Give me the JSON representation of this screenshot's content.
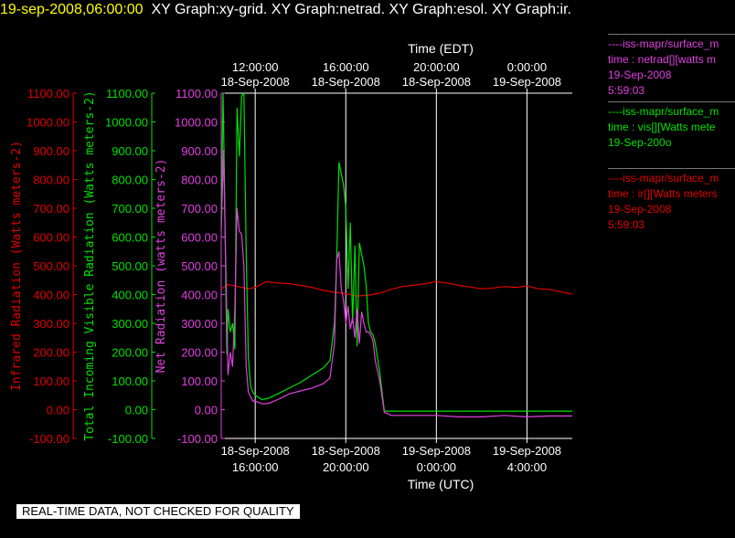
{
  "header": {
    "date": "19-sep-2008,06:00:00",
    "graphs": "XY Graph:xy-grid.  XY Graph:netrad.  XY Graph:esol.  XY Graph:ir."
  },
  "footer_note": "REAL-TIME DATA, NOT CHECKED FOR QUALITY",
  "legend": [
    {
      "color": "#e040e0",
      "lines": [
        "----iss-mapr/surface_m",
        "time : netrad[][watts m",
        "19-Sep-2008",
        "5:59:03"
      ]
    },
    {
      "color": "#00e000",
      "lines": [
        "----iss-mapr/surface_m",
        "time : vis[][Watts mete",
        "19-Sep-200o"
      ]
    },
    {
      "color": "#e00000",
      "lines": [
        "----iss-mapr/surface_m",
        "time : ir[][Watts meters",
        "19-Sep-2008",
        "5:59:03"
      ]
    }
  ],
  "chart_data": {
    "type": "line",
    "top_axis": {
      "title": "Time (EDT)",
      "ticks": [
        {
          "t": 0,
          "line1": "12:00:00",
          "line2": "18-Sep-2008"
        },
        {
          "t": 4,
          "line1": "16:00:00",
          "line2": "18-Sep-2008"
        },
        {
          "t": 8,
          "line1": "20:00:00",
          "line2": "18-Sep-2008"
        },
        {
          "t": 12,
          "line1": "0:00:00",
          "line2": "19-Sep-2008"
        }
      ]
    },
    "bottom_axis": {
      "title": "Time (UTC)",
      "ticks": [
        {
          "t": 0,
          "line1": "18-Sep-2008",
          "line2": "16:00:00"
        },
        {
          "t": 4,
          "line1": "18-Sep-2008",
          "line2": "20:00:00"
        },
        {
          "t": 8,
          "line1": "19-Sep-2008",
          "line2": "0:00:00"
        },
        {
          "t": 12,
          "line1": "19-Sep-2008",
          "line2": "4:00:00"
        }
      ]
    },
    "xlim": [
      -1.5,
      14.0
    ],
    "y_axes": [
      {
        "name": "ir",
        "label": "Infrared Radiation (Watts meters-2)",
        "color": "#e00000",
        "ylim": [
          -100,
          1100
        ],
        "ticks": [
          "1100.00",
          "1000.00",
          "900.00",
          "800.00",
          "700.00",
          "600.00",
          "500.00",
          "400.00",
          "300.00",
          "200.00",
          "100.00",
          "0.00",
          "-100.00"
        ]
      },
      {
        "name": "vis",
        "label": "Total Incoming Visible Radiation (Watts meters-2)",
        "color": "#00e000",
        "ylim": [
          -100,
          1100
        ],
        "ticks": [
          "1100.00",
          "1000.00",
          "900.00",
          "800.00",
          "700.00",
          "600.00",
          "500.00",
          "400.00",
          "300.00",
          "200.00",
          "100.00",
          "0.00",
          "-100.00"
        ]
      },
      {
        "name": "netrad",
        "label": "Net Radiation (watts meters-2)",
        "color": "#e040e0",
        "ylim": [
          -100,
          1100
        ],
        "ticks": [
          "1100.00",
          "1000.00",
          "900.00",
          "800.00",
          "700.00",
          "600.00",
          "500.00",
          "400.00",
          "300.00",
          "200.00",
          "100.00",
          "0.00",
          "-100.00"
        ]
      }
    ],
    "series": [
      {
        "color": "#e00000",
        "x": [
          -1.5,
          -1.2,
          -0.9,
          -0.6,
          -0.3,
          0,
          0.5,
          1,
          1.5,
          2,
          2.5,
          3,
          3.5,
          4,
          4.5,
          5,
          5.5,
          6,
          6.5,
          7,
          7.5,
          8,
          8.5,
          9,
          9.5,
          10,
          10.5,
          11,
          11.5,
          12,
          12.5,
          13,
          13.5,
          14
        ],
        "y": [
          420,
          435,
          430,
          425,
          420,
          425,
          445,
          440,
          438,
          432,
          425,
          415,
          408,
          403,
          395,
          398,
          405,
          418,
          428,
          432,
          438,
          445,
          440,
          432,
          426,
          420,
          423,
          428,
          425,
          430,
          420,
          418,
          410,
          402
        ]
      },
      {
        "color": "#00e000",
        "x": [
          -1.5,
          -1.42,
          -1.35,
          -1.3,
          -1.25,
          -1.2,
          -1.1,
          -1.0,
          -0.9,
          -0.8,
          -0.7,
          -0.6,
          -0.5,
          -0.4,
          -0.3,
          -0.2,
          -0.1,
          0,
          0.3,
          0.6,
          1,
          1.5,
          2,
          2.5,
          3,
          3.3,
          3.5,
          3.6,
          3.7,
          3.8,
          3.9,
          4.0,
          4.1,
          4.2,
          4.3,
          4.4,
          4.5,
          4.6,
          4.7,
          4.8,
          4.9,
          5.0,
          5.1,
          5.2,
          5.3,
          5.5,
          5.7,
          5.9,
          6.0,
          6.05,
          6.2,
          6.5,
          7,
          8,
          9,
          10,
          11,
          12,
          13,
          14
        ],
        "y": [
          650,
          1100,
          760,
          420,
          190,
          350,
          270,
          300,
          210,
          1050,
          880,
          1090,
          1100,
          550,
          180,
          80,
          60,
          50,
          35,
          40,
          55,
          75,
          95,
          120,
          145,
          170,
          300,
          520,
          860,
          820,
          780,
          700,
          420,
          650,
          300,
          570,
          220,
          580,
          540,
          500,
          430,
          300,
          270,
          260,
          230,
          130,
          -5,
          -5,
          -5,
          -5,
          -5,
          -5,
          -5,
          -5,
          -5,
          -5,
          -5,
          -5,
          -5,
          -5
        ]
      },
      {
        "color": "#e040e0",
        "x": [
          -1.5,
          -1.4,
          -1.3,
          -1.2,
          -1.1,
          -1.0,
          -0.9,
          -0.8,
          -0.7,
          -0.6,
          -0.5,
          -0.4,
          -0.3,
          -0.2,
          -0.1,
          0,
          0.3,
          0.6,
          1,
          1.5,
          2,
          2.5,
          3,
          3.3,
          3.5,
          3.6,
          3.7,
          3.8,
          3.9,
          4.0,
          4.1,
          4.2,
          4.3,
          4.4,
          4.5,
          4.6,
          4.7,
          4.8,
          4.9,
          5.0,
          5.1,
          5.2,
          5.3,
          5.5,
          5.7,
          5.9,
          6.0,
          6.2,
          6.5,
          7,
          8,
          9,
          10,
          11,
          12,
          13,
          14
        ],
        "y": [
          620,
          900,
          500,
          120,
          200,
          150,
          350,
          700,
          620,
          610,
          500,
          150,
          60,
          45,
          30,
          30,
          20,
          22,
          35,
          55,
          65,
          75,
          90,
          110,
          230,
          520,
          550,
          420,
          380,
          300,
          360,
          280,
          320,
          250,
          350,
          230,
          340,
          300,
          270,
          270,
          260,
          240,
          170,
          100,
          -10,
          -15,
          -20,
          -20,
          -20,
          -20,
          -20,
          -25,
          -25,
          -20,
          -25,
          -22,
          -22
        ]
      }
    ]
  }
}
